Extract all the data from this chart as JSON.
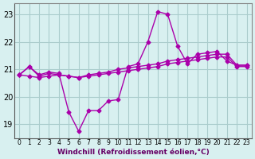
{
  "xlabel": "Windchill (Refroidissement éolien,°C)",
  "x": [
    0,
    1,
    2,
    3,
    4,
    5,
    6,
    7,
    8,
    9,
    10,
    11,
    12,
    13,
    14,
    15,
    16,
    17,
    18,
    19,
    20,
    21,
    22,
    23
  ],
  "line1": [
    20.8,
    21.1,
    20.8,
    20.9,
    20.85,
    19.45,
    18.75,
    19.5,
    19.5,
    19.85,
    19.9,
    21.1,
    21.2,
    22.0,
    23.1,
    23.0,
    21.85,
    21.2,
    21.55,
    21.6,
    21.65,
    21.3,
    21.15,
    21.15
  ],
  "line2": [
    20.8,
    21.1,
    20.75,
    20.85,
    20.8,
    20.75,
    20.7,
    20.8,
    20.85,
    20.9,
    21.0,
    21.05,
    21.1,
    21.15,
    21.2,
    21.3,
    21.35,
    21.4,
    21.45,
    21.5,
    21.55,
    21.55,
    21.15,
    21.15
  ],
  "line3": [
    20.8,
    20.75,
    20.7,
    20.75,
    20.8,
    20.75,
    20.7,
    20.75,
    20.8,
    20.85,
    20.9,
    20.95,
    21.0,
    21.05,
    21.1,
    21.2,
    21.25,
    21.3,
    21.35,
    21.4,
    21.45,
    21.45,
    21.1,
    21.1
  ],
  "line_color": "#aa00aa",
  "bg_color": "#d8f0f0",
  "grid_color": "#aacccc",
  "ylim": [
    18.5,
    23.4
  ],
  "yticks": [
    19,
    20,
    21,
    22,
    23
  ],
  "xticks": [
    0,
    1,
    2,
    3,
    4,
    5,
    6,
    7,
    8,
    9,
    10,
    11,
    12,
    13,
    14,
    15,
    16,
    17,
    18,
    19,
    20,
    21,
    22,
    23
  ]
}
